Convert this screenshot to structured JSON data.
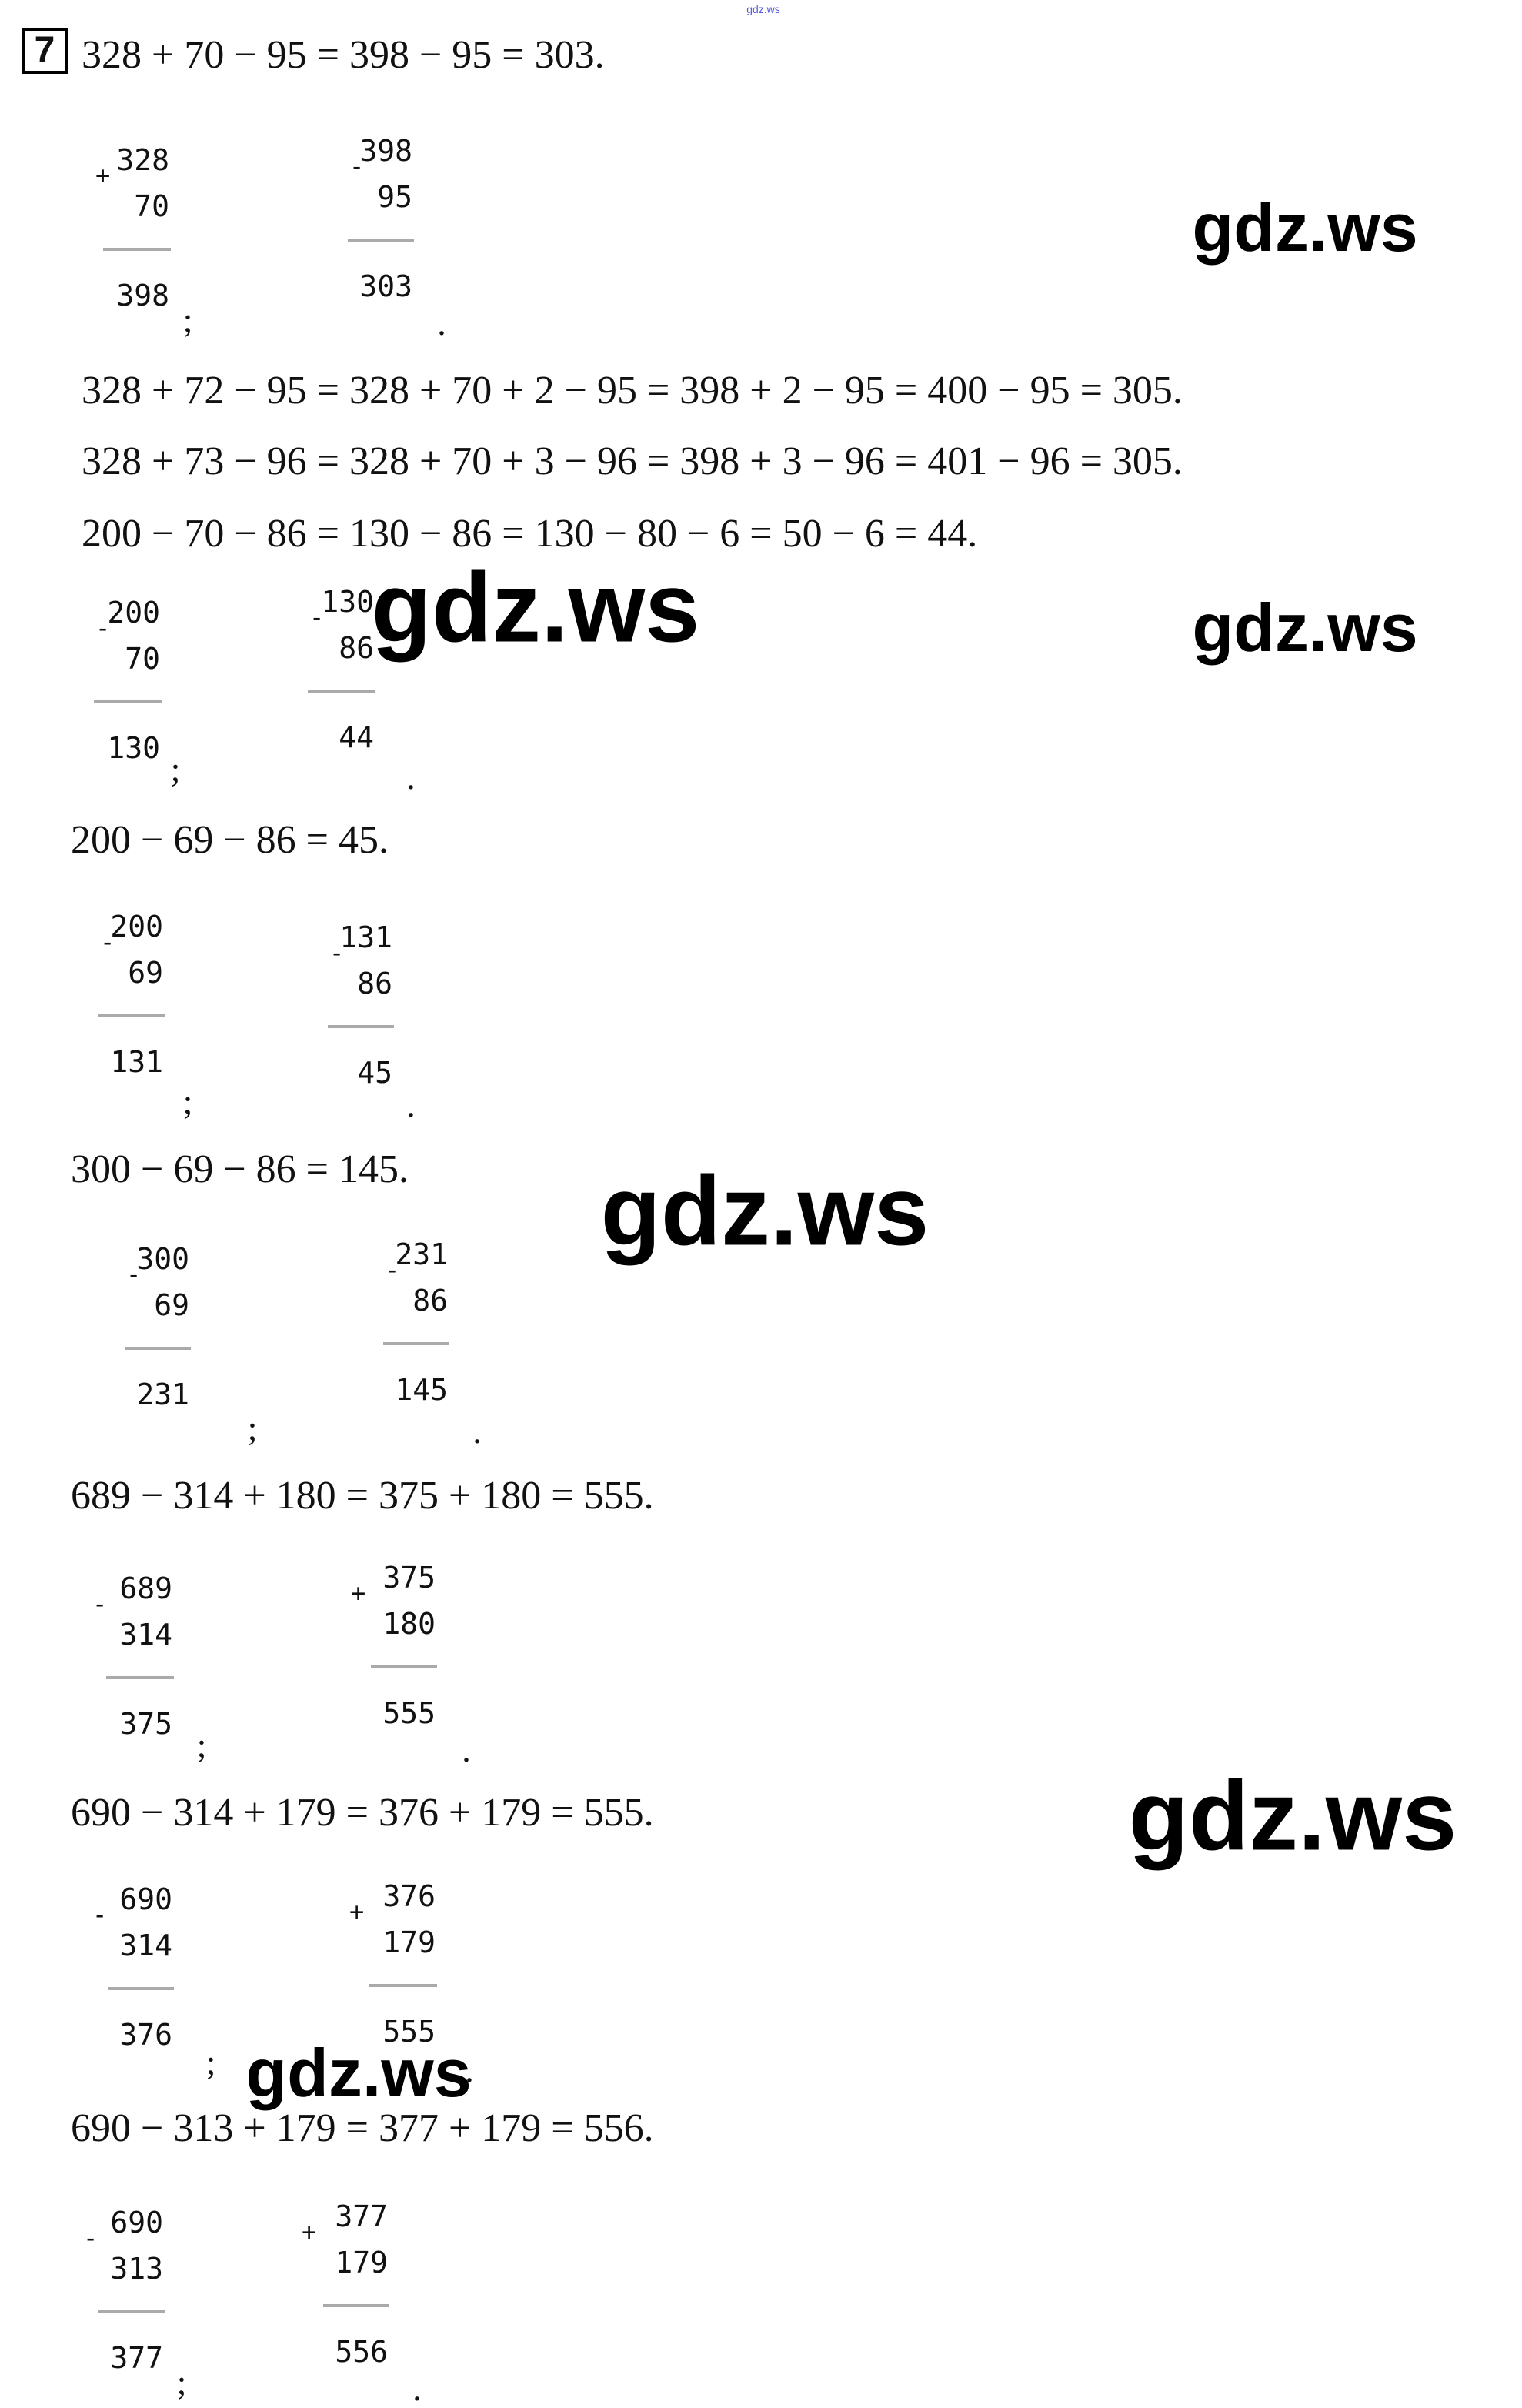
{
  "task_number": "7",
  "watermark_small": "gdz.ws",
  "watermark": "gdz.ws",
  "equations": [
    "328 + 70 − 95 = 398 − 95 = 303.",
    "328 + 72 − 95 = 328 + 70 + 2 − 95 = 398 + 2 − 95 = 400 − 95 = 305.",
    "328 + 73 − 96 = 328 + 70 + 3 − 96 = 398 + 3 − 96 = 401 − 96 = 305.",
    "200 − 70 − 86 = 130 − 86 = 130 − 80 − 6 = 50 − 6 = 44.",
    "200 − 69 − 86 = 45.",
    "300 − 69 − 86 = 145.",
    "689 − 314 + 180 = 375 + 180 = 555.",
    "690 − 314 + 179 = 376 + 179 = 555.",
    "690 − 313 + 179 = 377 + 179 = 556."
  ],
  "column_calculations": [
    {
      "top": "328",
      "bottom": "70",
      "sign": "+",
      "result": "398",
      "punct": ";"
    },
    {
      "top": "398",
      "bottom": "95",
      "sign": "-",
      "result": "303",
      "punct": "."
    },
    {
      "top": "200",
      "bottom": "70",
      "sign": "-",
      "result": "130",
      "punct": ";"
    },
    {
      "top": "130",
      "bottom": "86",
      "sign": "-",
      "result": "44",
      "punct": "."
    },
    {
      "top": "200",
      "bottom": "69",
      "sign": "-",
      "result": "131",
      "punct": ";"
    },
    {
      "top": "131",
      "bottom": "86",
      "sign": "-",
      "result": "45",
      "punct": "."
    },
    {
      "top": "300",
      "bottom": "69",
      "sign": "-",
      "result": "231",
      "punct": ";"
    },
    {
      "top": "231",
      "bottom": "86",
      "sign": "-",
      "result": "145",
      "punct": "."
    },
    {
      "top": "689",
      "bottom": "314",
      "sign": "-",
      "result": "375",
      "punct": ";"
    },
    {
      "top": "375",
      "bottom": "180",
      "sign": "+",
      "result": "555",
      "punct": "."
    },
    {
      "top": "690",
      "bottom": "314",
      "sign": "-",
      "result": "376",
      "punct": ";"
    },
    {
      "top": "376",
      "bottom": "179",
      "sign": "+",
      "result": "555",
      "punct": "."
    },
    {
      "top": "690",
      "bottom": "313",
      "sign": "-",
      "result": "377",
      "punct": ";"
    },
    {
      "top": "377",
      "bottom": "179",
      "sign": "+",
      "result": "556",
      "punct": "."
    }
  ]
}
